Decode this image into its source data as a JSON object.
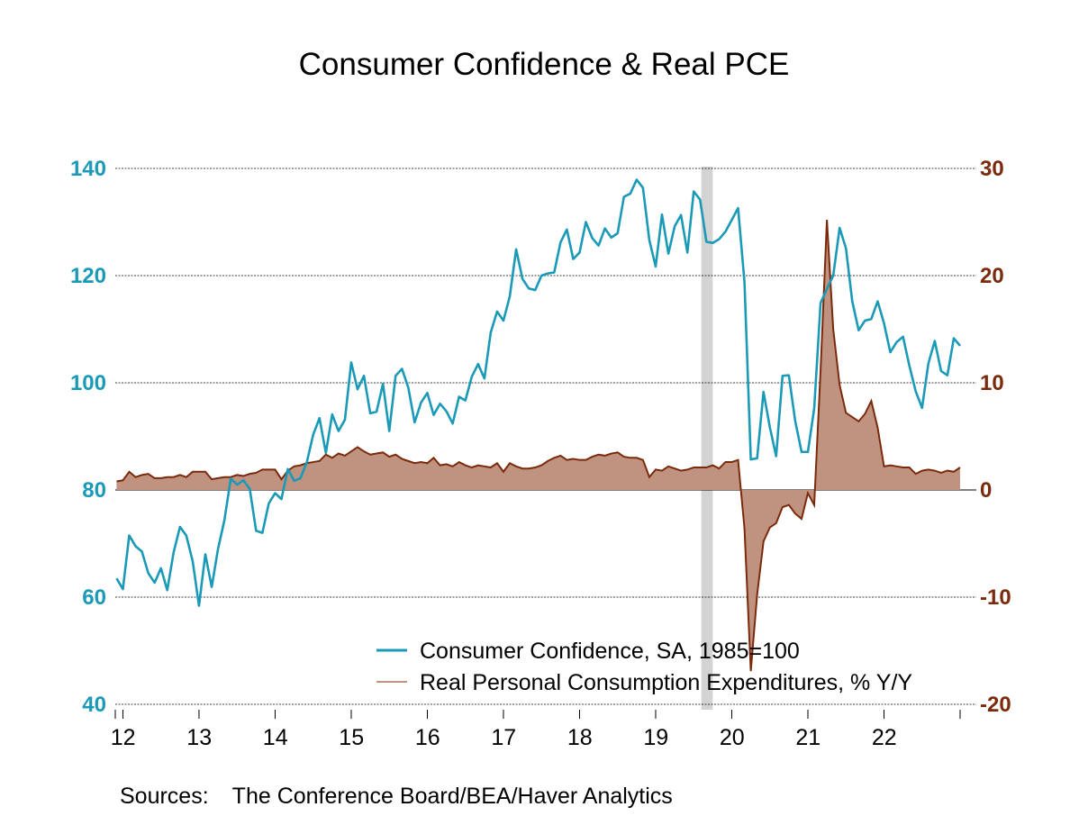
{
  "chart_data": {
    "type": "line",
    "title": "Consumer Confidence & Real PCE",
    "x_tick_labels": [
      "12",
      "13",
      "14",
      "15",
      "16",
      "17",
      "18",
      "19",
      "20",
      "21",
      "22"
    ],
    "left_axis": {
      "ticks": [
        "140",
        "120",
        "100",
        "80",
        "60",
        "40"
      ],
      "range": [
        40,
        140
      ],
      "color": "#1b9ab8"
    },
    "right_axis": {
      "ticks": [
        "30",
        "20",
        "10",
        "0",
        "-10",
        "-20"
      ],
      "range": [
        -20,
        30
      ],
      "color": "#7b2a0b"
    },
    "x_range": [
      2011.9,
      2023.0
    ],
    "recession_shading": [
      2019.6,
      2019.75
    ],
    "series": [
      {
        "name": "Consumer Confidence, SA, 1985=100",
        "axis": "left",
        "color": "#1b9ab8",
        "points": [
          [
            2011.917,
            63.5
          ],
          [
            2012.0,
            61.5
          ],
          [
            2012.083,
            71.5
          ],
          [
            2012.167,
            69.5
          ],
          [
            2012.25,
            68.5
          ],
          [
            2012.333,
            64.5
          ],
          [
            2012.417,
            62.7
          ],
          [
            2012.5,
            65.4
          ],
          [
            2012.583,
            61.3
          ],
          [
            2012.667,
            68.4
          ],
          [
            2012.75,
            73.1
          ],
          [
            2012.833,
            71.5
          ],
          [
            2012.917,
            66.7
          ],
          [
            2013.0,
            58.4
          ],
          [
            2013.083,
            68.0
          ],
          [
            2013.167,
            61.9
          ],
          [
            2013.25,
            69.0
          ],
          [
            2013.333,
            74.3
          ],
          [
            2013.417,
            82.1
          ],
          [
            2013.5,
            81.0
          ],
          [
            2013.583,
            81.8
          ],
          [
            2013.667,
            80.2
          ],
          [
            2013.75,
            72.4
          ],
          [
            2013.833,
            72.0
          ],
          [
            2013.917,
            77.5
          ],
          [
            2014.0,
            79.4
          ],
          [
            2014.083,
            78.3
          ],
          [
            2014.167,
            83.9
          ],
          [
            2014.25,
            81.7
          ],
          [
            2014.333,
            82.2
          ],
          [
            2014.417,
            85.2
          ],
          [
            2014.5,
            90.3
          ],
          [
            2014.583,
            93.4
          ],
          [
            2014.667,
            86.9
          ],
          [
            2014.75,
            94.1
          ],
          [
            2014.833,
            91.0
          ],
          [
            2014.917,
            93.1
          ],
          [
            2015.0,
            103.8
          ],
          [
            2015.083,
            98.8
          ],
          [
            2015.167,
            101.3
          ],
          [
            2015.25,
            94.3
          ],
          [
            2015.333,
            94.6
          ],
          [
            2015.417,
            99.8
          ],
          [
            2015.5,
            91.0
          ],
          [
            2015.583,
            101.3
          ],
          [
            2015.667,
            102.6
          ],
          [
            2015.75,
            99.1
          ],
          [
            2015.833,
            92.6
          ],
          [
            2015.917,
            96.3
          ],
          [
            2016.0,
            98.1
          ],
          [
            2016.083,
            94.0
          ],
          [
            2016.167,
            96.1
          ],
          [
            2016.25,
            94.7
          ],
          [
            2016.333,
            92.4
          ],
          [
            2016.417,
            97.4
          ],
          [
            2016.5,
            96.7
          ],
          [
            2016.583,
            101.1
          ],
          [
            2016.667,
            103.5
          ],
          [
            2016.75,
            100.8
          ],
          [
            2016.833,
            109.4
          ],
          [
            2016.917,
            113.3
          ],
          [
            2017.0,
            111.6
          ],
          [
            2017.083,
            116.1
          ],
          [
            2017.167,
            124.9
          ],
          [
            2017.25,
            119.4
          ],
          [
            2017.333,
            117.6
          ],
          [
            2017.417,
            117.3
          ],
          [
            2017.5,
            120.0
          ],
          [
            2017.583,
            120.4
          ],
          [
            2017.667,
            120.6
          ],
          [
            2017.75,
            126.2
          ],
          [
            2017.833,
            128.6
          ],
          [
            2017.917,
            123.1
          ],
          [
            2018.0,
            124.3
          ],
          [
            2018.083,
            130.0
          ],
          [
            2018.167,
            127.0
          ],
          [
            2018.25,
            125.6
          ],
          [
            2018.333,
            128.8
          ],
          [
            2018.417,
            127.1
          ],
          [
            2018.5,
            127.9
          ],
          [
            2018.583,
            134.7
          ],
          [
            2018.667,
            135.3
          ],
          [
            2018.75,
            137.9
          ],
          [
            2018.833,
            136.4
          ],
          [
            2018.917,
            126.6
          ],
          [
            2019.0,
            121.7
          ],
          [
            2019.083,
            131.4
          ],
          [
            2019.167,
            124.1
          ],
          [
            2019.25,
            129.2
          ],
          [
            2019.333,
            131.3
          ],
          [
            2019.417,
            124.3
          ],
          [
            2019.5,
            135.7
          ],
          [
            2019.583,
            134.2
          ],
          [
            2019.667,
            126.3
          ],
          [
            2019.75,
            126.1
          ],
          [
            2019.833,
            126.8
          ],
          [
            2019.917,
            128.2
          ],
          [
            2020.0,
            130.4
          ],
          [
            2020.083,
            132.6
          ],
          [
            2020.167,
            118.8
          ],
          [
            2020.25,
            85.7
          ],
          [
            2020.333,
            85.9
          ],
          [
            2020.417,
            98.3
          ],
          [
            2020.5,
            91.7
          ],
          [
            2020.583,
            86.3
          ],
          [
            2020.667,
            101.3
          ],
          [
            2020.75,
            101.4
          ],
          [
            2020.833,
            92.9
          ],
          [
            2020.917,
            87.1
          ],
          [
            2021.0,
            87.1
          ],
          [
            2021.083,
            95.2
          ],
          [
            2021.167,
            114.9
          ],
          [
            2021.25,
            117.5
          ],
          [
            2021.333,
            120.0
          ],
          [
            2021.417,
            128.9
          ],
          [
            2021.5,
            125.1
          ],
          [
            2021.583,
            115.2
          ],
          [
            2021.667,
            109.8
          ],
          [
            2021.75,
            111.6
          ],
          [
            2021.833,
            111.9
          ],
          [
            2021.917,
            115.2
          ],
          [
            2022.0,
            111.1
          ],
          [
            2022.083,
            105.7
          ],
          [
            2022.167,
            107.6
          ],
          [
            2022.25,
            108.6
          ],
          [
            2022.333,
            103.2
          ],
          [
            2022.417,
            98.4
          ],
          [
            2022.5,
            95.3
          ],
          [
            2022.583,
            103.6
          ],
          [
            2022.667,
            107.8
          ],
          [
            2022.75,
            102.2
          ],
          [
            2022.833,
            101.4
          ],
          [
            2022.917,
            108.3
          ],
          [
            2023.0,
            106.9
          ]
        ]
      },
      {
        "name": "Real Personal Consumption Expenditures, % Y/Y",
        "axis": "right",
        "color": "#7b2a0b",
        "fill": "#c09280",
        "points": [
          [
            2011.917,
            0.8
          ],
          [
            2012.0,
            0.9
          ],
          [
            2012.083,
            1.7
          ],
          [
            2012.167,
            1.2
          ],
          [
            2012.25,
            1.4
          ],
          [
            2012.333,
            1.5
          ],
          [
            2012.417,
            1.1
          ],
          [
            2012.5,
            1.1
          ],
          [
            2012.583,
            1.2
          ],
          [
            2012.667,
            1.2
          ],
          [
            2012.75,
            1.4
          ],
          [
            2012.833,
            1.2
          ],
          [
            2012.917,
            1.7
          ],
          [
            2013.0,
            1.7
          ],
          [
            2013.083,
            1.7
          ],
          [
            2013.167,
            1.0
          ],
          [
            2013.25,
            1.1
          ],
          [
            2013.333,
            1.2
          ],
          [
            2013.417,
            1.2
          ],
          [
            2013.5,
            1.4
          ],
          [
            2013.583,
            1.3
          ],
          [
            2013.667,
            1.5
          ],
          [
            2013.75,
            1.6
          ],
          [
            2013.833,
            1.9
          ],
          [
            2013.917,
            1.9
          ],
          [
            2014.0,
            1.9
          ],
          [
            2014.083,
            1.0
          ],
          [
            2014.167,
            1.8
          ],
          [
            2014.25,
            2.2
          ],
          [
            2014.333,
            2.3
          ],
          [
            2014.417,
            2.5
          ],
          [
            2014.5,
            2.6
          ],
          [
            2014.583,
            2.7
          ],
          [
            2014.667,
            3.3
          ],
          [
            2014.75,
            3.0
          ],
          [
            2014.833,
            3.4
          ],
          [
            2014.917,
            3.2
          ],
          [
            2015.0,
            3.6
          ],
          [
            2015.083,
            4.0
          ],
          [
            2015.167,
            3.6
          ],
          [
            2015.25,
            3.3
          ],
          [
            2015.333,
            3.4
          ],
          [
            2015.417,
            3.5
          ],
          [
            2015.5,
            3.1
          ],
          [
            2015.583,
            3.3
          ],
          [
            2015.667,
            2.9
          ],
          [
            2015.75,
            2.7
          ],
          [
            2015.833,
            2.5
          ],
          [
            2015.917,
            2.6
          ],
          [
            2016.0,
            2.5
          ],
          [
            2016.083,
            3.0
          ],
          [
            2016.167,
            2.3
          ],
          [
            2016.25,
            2.4
          ],
          [
            2016.333,
            2.2
          ],
          [
            2016.417,
            2.6
          ],
          [
            2016.5,
            2.3
          ],
          [
            2016.583,
            2.1
          ],
          [
            2016.667,
            2.3
          ],
          [
            2016.75,
            2.2
          ],
          [
            2016.833,
            2.1
          ],
          [
            2016.917,
            2.5
          ],
          [
            2017.0,
            1.7
          ],
          [
            2017.083,
            2.5
          ],
          [
            2017.167,
            2.2
          ],
          [
            2017.25,
            2.0
          ],
          [
            2017.333,
            2.0
          ],
          [
            2017.417,
            2.1
          ],
          [
            2017.5,
            2.3
          ],
          [
            2017.583,
            2.7
          ],
          [
            2017.667,
            3.0
          ],
          [
            2017.75,
            3.2
          ],
          [
            2017.833,
            2.8
          ],
          [
            2017.917,
            2.9
          ],
          [
            2018.0,
            2.8
          ],
          [
            2018.083,
            2.8
          ],
          [
            2018.167,
            3.1
          ],
          [
            2018.25,
            3.3
          ],
          [
            2018.333,
            3.2
          ],
          [
            2018.417,
            3.4
          ],
          [
            2018.5,
            3.5
          ],
          [
            2018.583,
            3.1
          ],
          [
            2018.667,
            3.0
          ],
          [
            2018.75,
            3.0
          ],
          [
            2018.833,
            2.8
          ],
          [
            2018.917,
            1.2
          ],
          [
            2019.0,
            1.9
          ],
          [
            2019.083,
            1.8
          ],
          [
            2019.167,
            2.2
          ],
          [
            2019.25,
            2.0
          ],
          [
            2019.333,
            1.8
          ],
          [
            2019.417,
            1.9
          ],
          [
            2019.5,
            2.1
          ],
          [
            2019.583,
            2.1
          ],
          [
            2019.667,
            2.1
          ],
          [
            2019.75,
            2.3
          ],
          [
            2019.833,
            2.0
          ],
          [
            2019.917,
            2.6
          ],
          [
            2020.0,
            2.6
          ],
          [
            2020.083,
            2.8
          ],
          [
            2020.167,
            -3.6
          ],
          [
            2020.25,
            -16.9
          ],
          [
            2020.333,
            -9.8
          ],
          [
            2020.417,
            -4.8
          ],
          [
            2020.5,
            -3.5
          ],
          [
            2020.583,
            -3.1
          ],
          [
            2020.667,
            -1.6
          ],
          [
            2020.75,
            -1.4
          ],
          [
            2020.833,
            -2.2
          ],
          [
            2020.917,
            -2.7
          ],
          [
            2021.0,
            -0.3
          ],
          [
            2021.083,
            -1.4
          ],
          [
            2021.167,
            11.2
          ],
          [
            2021.25,
            25.2
          ],
          [
            2021.333,
            15.0
          ],
          [
            2021.417,
            9.8
          ],
          [
            2021.5,
            7.2
          ],
          [
            2021.583,
            6.8
          ],
          [
            2021.667,
            6.4
          ],
          [
            2021.75,
            7.1
          ],
          [
            2021.833,
            8.3
          ],
          [
            2021.917,
            5.8
          ],
          [
            2022.0,
            2.2
          ],
          [
            2022.083,
            2.3
          ],
          [
            2022.167,
            2.2
          ],
          [
            2022.25,
            2.1
          ],
          [
            2022.333,
            2.1
          ],
          [
            2022.417,
            1.5
          ],
          [
            2022.5,
            1.8
          ],
          [
            2022.583,
            1.9
          ],
          [
            2022.667,
            1.8
          ],
          [
            2022.75,
            1.6
          ],
          [
            2022.833,
            1.8
          ],
          [
            2022.917,
            1.7
          ],
          [
            2023.0,
            2.1
          ]
        ]
      }
    ],
    "legend": [
      {
        "label": "Consumer Confidence, SA, 1985=100",
        "color": "#1b9ab8"
      },
      {
        "label": "Real Personal Consumption Expenditures, % Y/Y",
        "color": "#c09280"
      }
    ],
    "legend_placement": "bottom-center"
  },
  "source": {
    "label": "Sources:",
    "text": "The Conference Board/BEA/Haver Analytics"
  }
}
